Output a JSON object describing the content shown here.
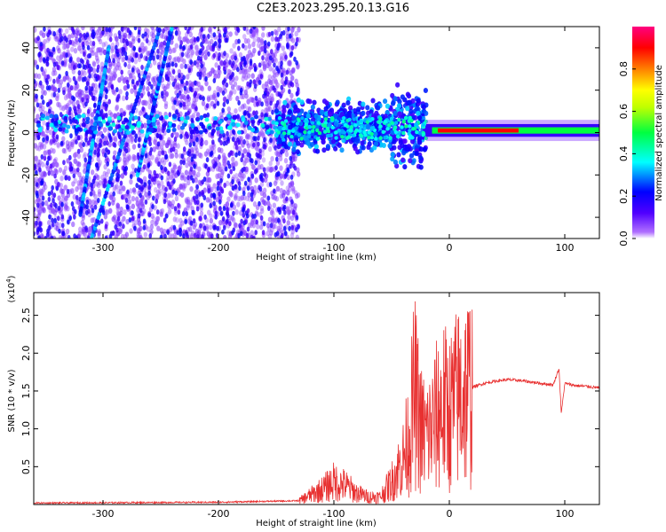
{
  "title": "C2E3.2023.295.20.13.G16",
  "chart_data": [
    {
      "type": "heatmap",
      "xlabel": "Height of straight line (km)",
      "ylabel": "Frequency (Hz)",
      "xlim": [
        -360,
        130
      ],
      "ylim": [
        -50,
        50
      ],
      "x_ticks": [
        -300,
        -200,
        -100,
        0,
        100
      ],
      "x_tick_labels": [
        "-300",
        "-200",
        "-100",
        "0",
        "100"
      ],
      "y_ticks": [
        -40,
        -20,
        0,
        20,
        40
      ],
      "y_tick_labels": [
        "-40",
        "-20",
        "0",
        "20",
        "40"
      ],
      "colorbar": {
        "label": "Normalized spectral amplitude",
        "range": [
          0,
          1
        ],
        "ticks": [
          0.0,
          0.2,
          0.4,
          0.6,
          0.8
        ],
        "tick_labels": [
          "0.0",
          "0.2",
          "0.4",
          "0.6",
          "0.8"
        ],
        "colors": [
          "#ffffff",
          "#b070ff",
          "#4000ff",
          "#0000ff",
          "#00ffff",
          "#00ff40",
          "#c0ff00",
          "#ffff00",
          "#ff8000",
          "#ff0000",
          "#ff0080"
        ]
      },
      "features": [
        {
          "kind": "carrier_band",
          "x": [
            -20,
            130
          ],
          "y": 1,
          "peak_amplitude": 0.9
        },
        {
          "kind": "noise_band",
          "x": [
            -360,
            -130
          ],
          "y": [
            -50,
            50
          ]
        },
        {
          "kind": "scintillation_band",
          "x": [
            -150,
            -20
          ],
          "y": [
            -15,
            20
          ]
        }
      ]
    },
    {
      "type": "line",
      "xlabel": "Height of straight line (km)",
      "ylabel": "SNR (10 * v/v)",
      "y_scale_label": "(x10",
      "y_scale_exponent": "4",
      "y_scale_suffix": ")",
      "xlim": [
        -360,
        130
      ],
      "ylim": [
        0,
        2.8
      ],
      "x_ticks": [
        -300,
        -200,
        -100,
        0,
        100
      ],
      "x_tick_labels": [
        "-300",
        "-200",
        "-100",
        "0",
        "100"
      ],
      "y_ticks": [
        0.5,
        1.0,
        1.5,
        2.0,
        2.5
      ],
      "y_tick_labels": [
        "0.5",
        "1.0",
        "1.5",
        "2.0",
        "2.5"
      ],
      "color": "#e83030",
      "series": [
        {
          "x": [
            -360,
            -200,
            -130,
            -110,
            -100,
            -90,
            -80,
            -70,
            -60,
            -50,
            -40,
            -35,
            -30,
            -25,
            -20,
            -15,
            -10,
            -5,
            0,
            5,
            10,
            20,
            30,
            40,
            50,
            60,
            70,
            80,
            90,
            95,
            97,
            100,
            110,
            120,
            130
          ],
          "values": [
            0.02,
            0.03,
            0.05,
            0.2,
            0.3,
            0.25,
            0.15,
            0.1,
            0.1,
            0.3,
            0.6,
            0.9,
            1.5,
            1.0,
            0.9,
            1.0,
            1.2,
            1.3,
            1.2,
            1.35,
            1.45,
            1.55,
            1.6,
            1.63,
            1.65,
            1.64,
            1.62,
            1.6,
            1.58,
            1.8,
            1.2,
            1.6,
            1.57,
            1.56,
            1.54
          ]
        }
      ]
    }
  ]
}
